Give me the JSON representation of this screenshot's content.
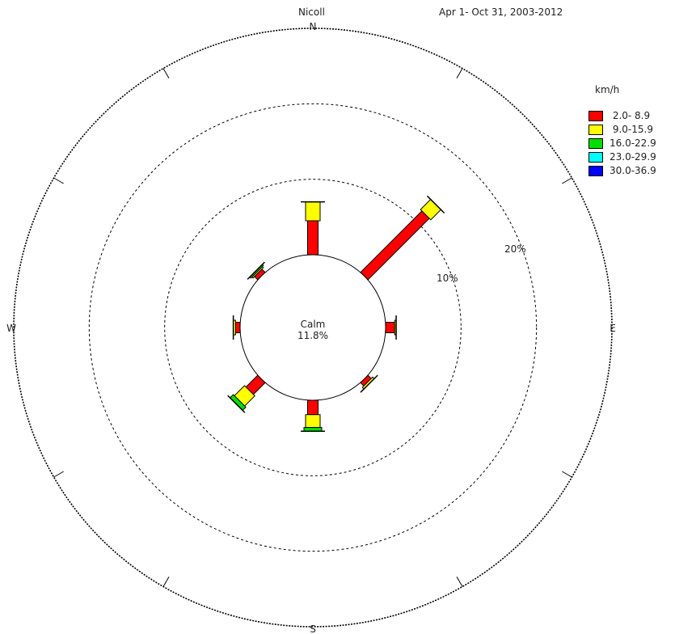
{
  "chart_data": {
    "type": "wind-rose",
    "title": "Nicoll",
    "subtitle": "Apr 1- Oct 31, 2003-2012",
    "units": "km/h",
    "calm": {
      "label": "Calm",
      "value": "11.8%"
    },
    "ring_labels": [
      "10%",
      "20%"
    ],
    "compass": {
      "N": "N",
      "E": "E",
      "S": "S",
      "W": "W"
    },
    "bins": [
      {
        "label": " 2.0- 8.9",
        "color": "#ff0000"
      },
      {
        "label": " 9.0-15.9",
        "color": "#ffff00"
      },
      {
        "label": "16.0-22.9",
        "color": "#00e000"
      },
      {
        "label": "23.0-29.9",
        "color": "#00ffff"
      },
      {
        "label": "30.0-36.9",
        "color": "#0000ff"
      }
    ],
    "directions": [
      {
        "dir": "N",
        "angle": 0,
        "values": [
          4.5,
          2.5,
          0,
          0,
          0
        ]
      },
      {
        "dir": "NE",
        "angle": 45,
        "values": [
          11.5,
          1.9,
          0,
          0,
          0
        ]
      },
      {
        "dir": "E",
        "angle": 90,
        "values": [
          1.2,
          0.2,
          0,
          0,
          0
        ]
      },
      {
        "dir": "SE",
        "angle": 135,
        "values": [
          0.6,
          0.3,
          0,
          0,
          0
        ]
      },
      {
        "dir": "S",
        "angle": 180,
        "values": [
          1.9,
          1.7,
          0.5,
          0,
          0
        ]
      },
      {
        "dir": "SW",
        "angle": 225,
        "values": [
          2.2,
          1.9,
          0.6,
          0,
          0
        ]
      },
      {
        "dir": "W",
        "angle": 270,
        "values": [
          0.6,
          0.3,
          0,
          0,
          0
        ]
      },
      {
        "dir": "NW",
        "angle": 315,
        "values": [
          0.6,
          0.2,
          0.2,
          0,
          0
        ]
      }
    ],
    "rmax": 30
  }
}
